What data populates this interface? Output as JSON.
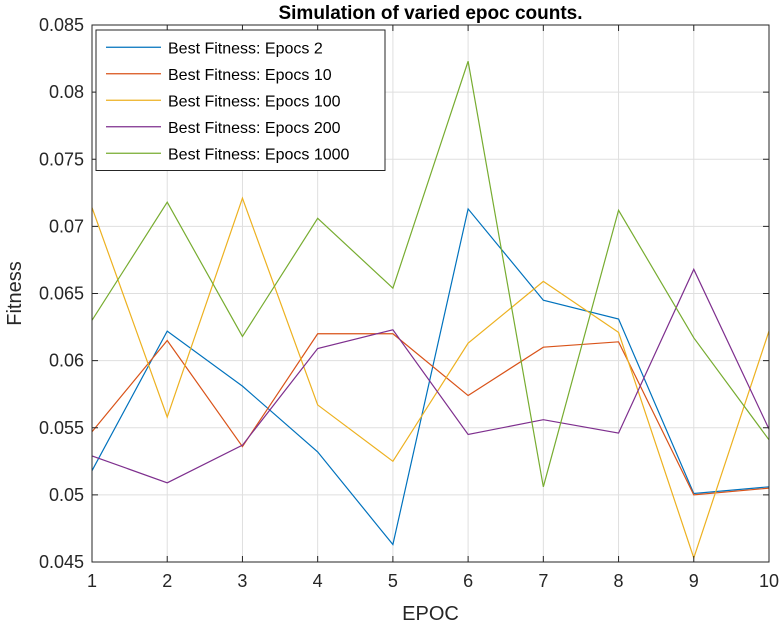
{
  "chart_data": {
    "type": "line",
    "title": "Simulation of varied epoc counts.",
    "xlabel": "EPOC",
    "ylabel": "Fitness",
    "xlim": [
      1,
      10
    ],
    "ylim": [
      0.045,
      0.085
    ],
    "grid": true,
    "legend_position": "top-left",
    "x_ticks": [
      "1",
      "2",
      "3",
      "4",
      "5",
      "6",
      "7",
      "8",
      "9",
      "10"
    ],
    "y_ticks": [
      "0.045",
      "0.05",
      "0.055",
      "0.06",
      "0.065",
      "0.07",
      "0.075",
      "0.08",
      "0.085"
    ],
    "x": [
      1,
      2,
      3,
      4,
      5,
      6,
      7,
      8,
      9,
      10
    ],
    "series": [
      {
        "name": "Best Fitness: Epocs 2",
        "color": "#0072BD",
        "values": [
          0.0518,
          0.0622,
          0.0581,
          0.0532,
          0.0463,
          0.0713,
          0.0645,
          0.0631,
          0.0501,
          0.0506
        ]
      },
      {
        "name": "Best Fitness: Epocs 10",
        "color": "#D95319",
        "values": [
          0.0547,
          0.0615,
          0.0536,
          0.062,
          0.062,
          0.0574,
          0.061,
          0.0614,
          0.05,
          0.0505
        ]
      },
      {
        "name": "Best Fitness: Epocs 100",
        "color": "#EDB120",
        "values": [
          0.0714,
          0.0558,
          0.0721,
          0.0567,
          0.0525,
          0.0613,
          0.0659,
          0.0621,
          0.0453,
          0.0622
        ]
      },
      {
        "name": "Best Fitness: Epocs 200",
        "color": "#7E2F8E",
        "values": [
          0.0529,
          0.0509,
          0.0537,
          0.0609,
          0.0623,
          0.0545,
          0.0556,
          0.0546,
          0.0668,
          0.0549
        ]
      },
      {
        "name": "Best Fitness: Epocs 1000",
        "color": "#77AC30",
        "values": [
          0.063,
          0.0718,
          0.0618,
          0.0706,
          0.0654,
          0.0823,
          0.0506,
          0.0712,
          0.0617,
          0.0541
        ]
      }
    ]
  }
}
